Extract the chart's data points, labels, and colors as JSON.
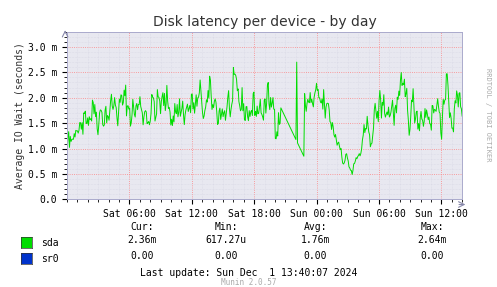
{
  "title": "Disk latency per device - by day",
  "ylabel": "Average IO Wait (seconds)",
  "bg_color": "#ffffff",
  "plot_bg_color": "#e8e8f0",
  "grid_color_major": "#ff7777",
  "grid_color_minor": "#ccccdd",
  "line_color_sda": "#00dd00",
  "line_color_sr0": "#0033cc",
  "ytick_labels": [
    "0.0",
    "0.5 m",
    "1.0 m",
    "1.5 m",
    "2.0 m",
    "2.5 m",
    "3.0 m"
  ],
  "ylim": [
    0.0,
    3.3
  ],
  "xtick_labels": [
    "Sat 06:00",
    "Sat 12:00",
    "Sat 18:00",
    "Sun 00:00",
    "Sun 06:00",
    "Sun 12:00"
  ],
  "title_fontsize": 10,
  "tick_fontsize": 7,
  "footer_text": "Last update: Sun Dec  1 13:40:07 2024",
  "munin_text": "Munin 2.0.57",
  "stats_cur_sda": "2.36m",
  "stats_min_sda": "617.27u",
  "stats_avg_sda": "1.76m",
  "stats_max_sda": "2.64m",
  "stats_cur_sr0": "0.00",
  "stats_min_sr0": "0.00",
  "stats_avg_sr0": "0.00",
  "stats_max_sr0": "0.00",
  "right_label": "RRDTOOL / TOBI OETIKER",
  "seed": 42
}
